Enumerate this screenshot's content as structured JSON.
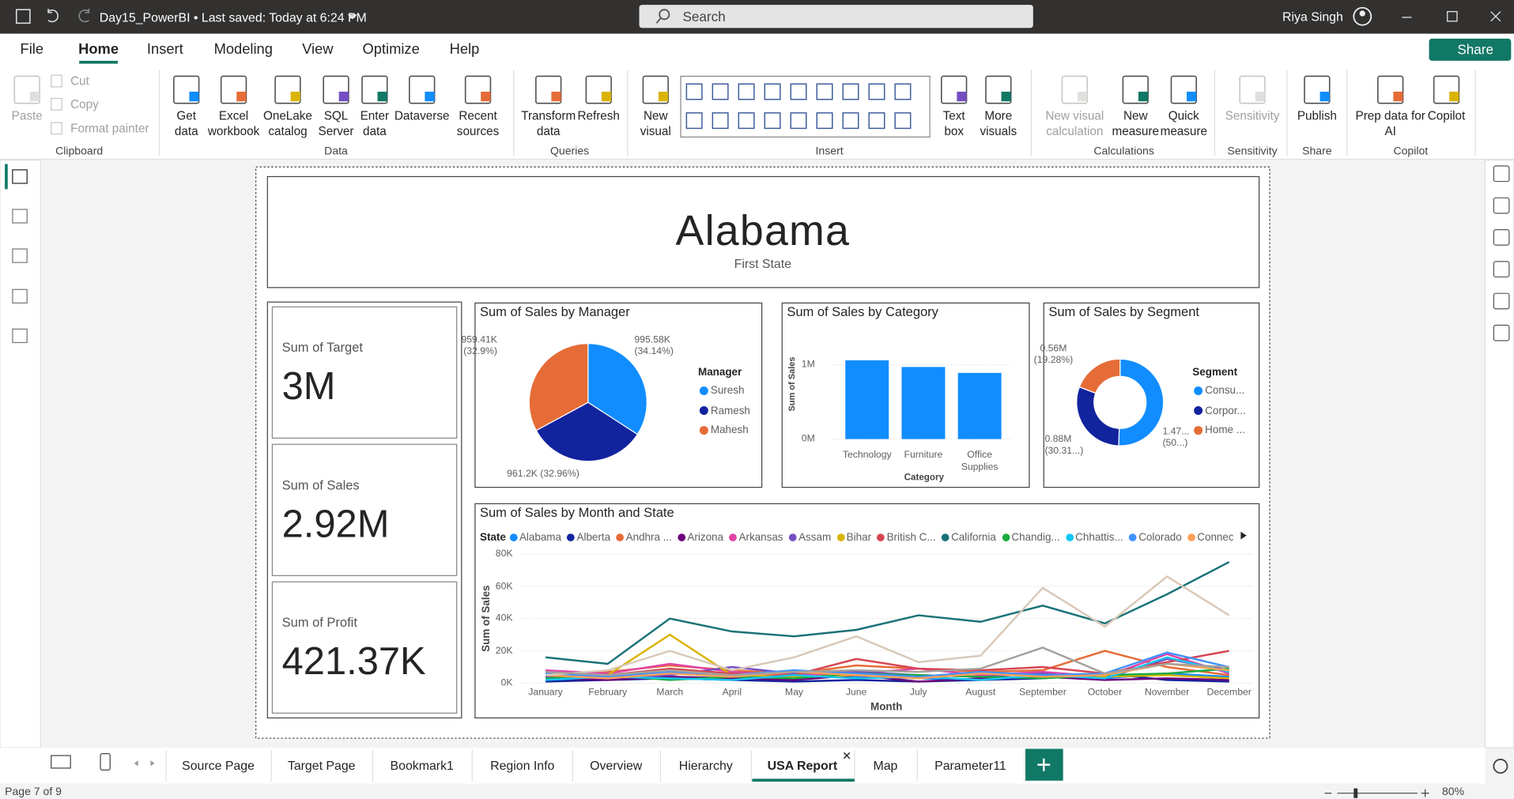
{
  "titlebar": {
    "file": "Day15_PowerBI • Last saved: Today at 6:24 PM",
    "search": "Search",
    "user": "Riya Singh"
  },
  "menu": {
    "items": [
      "File",
      "Home",
      "Insert",
      "Modeling",
      "View",
      "Optimize",
      "Help"
    ],
    "active_index": 1,
    "share": "Share"
  },
  "ribbon": {
    "groups": [
      {
        "label": "Clipboard",
        "buttons": [
          {
            "label": "Paste",
            "disabled": true
          },
          {
            "label": "Cut",
            "disabled": true
          },
          {
            "label": "Copy",
            "disabled": true
          },
          {
            "label": "Format painter",
            "disabled": true
          }
        ]
      },
      {
        "label": "Data",
        "buttons": [
          {
            "label": "Get data",
            "disabled": false
          },
          {
            "label": "Excel workbook",
            "disabled": false
          },
          {
            "label": "OneLake catalog",
            "disabled": false
          },
          {
            "label": "SQL Server",
            "disabled": false
          },
          {
            "label": "Enter data",
            "disabled": false
          },
          {
            "label": "Dataverse",
            "disabled": false
          },
          {
            "label": "Recent sources",
            "disabled": false
          }
        ]
      },
      {
        "label": "Queries",
        "buttons": [
          {
            "label": "Transform data",
            "disabled": false
          },
          {
            "label": "Refresh",
            "disabled": false
          }
        ]
      },
      {
        "label": "Insert",
        "buttons": [
          {
            "label": "New visual",
            "disabled": false
          },
          {
            "label": "Text box",
            "disabled": false
          },
          {
            "label": "More visuals",
            "disabled": false
          }
        ]
      },
      {
        "label": "Calculations",
        "buttons": [
          {
            "label": "New visual calculation",
            "disabled": true
          },
          {
            "label": "New measure",
            "disabled": false
          },
          {
            "label": "Quick measure",
            "disabled": false
          }
        ]
      },
      {
        "label": "Sensitivity",
        "buttons": [
          {
            "label": "Sensitivity",
            "disabled": true
          }
        ]
      },
      {
        "label": "Share",
        "buttons": [
          {
            "label": "Publish",
            "disabled": false
          }
        ]
      },
      {
        "label": "Copilot",
        "buttons": [
          {
            "label": "Prep data for AI",
            "disabled": false
          },
          {
            "label": "Copilot",
            "disabled": false
          }
        ]
      }
    ]
  },
  "report": {
    "header": {
      "title": "Alabama",
      "subtitle": "First State"
    },
    "cards": [
      {
        "label": "Sum of Target",
        "value": "3M"
      },
      {
        "label": "Sum of Sales",
        "value": "2.92M"
      },
      {
        "label": "Sum of Profit",
        "value": "421.37K"
      }
    ]
  },
  "chart_data": [
    {
      "type": "pie",
      "title": "Sum of Sales by Manager",
      "legend_title": "Manager",
      "categories": [
        "Suresh",
        "Ramesh",
        "Mahesh"
      ],
      "values": [
        995580,
        961200,
        959410
      ],
      "value_labels": [
        "995.58K (34.14%)",
        "961.2K (32.96%)",
        "959.41K (32.9%)"
      ],
      "colors": [
        "#118DFF",
        "#12239E",
        "#E66C37"
      ]
    },
    {
      "type": "bar",
      "title": "Sum of Sales by Category",
      "x_label": "Category",
      "y_label": "Sum of Sales",
      "categories": [
        "Technology",
        "Furniture",
        "Office Supplies"
      ],
      "values": [
        1060000,
        970000,
        890000
      ],
      "color": "#118DFF",
      "ylim": [
        0,
        1200000
      ],
      "yticks": [
        {
          "value": 0,
          "label": "0M"
        },
        {
          "value": 1000000,
          "label": "1M"
        }
      ],
      "grid": true
    },
    {
      "type": "donut",
      "title": "Sum of Sales by Segment",
      "legend_title": "Segment",
      "categories": [
        "Consu...",
        "Corpor...",
        "Home ..."
      ],
      "values": [
        1470000,
        880000,
        560000
      ],
      "value_labels": [
        "1.47... (50...)",
        "0.88M (30.31...)",
        "0.56M (19.28%)"
      ],
      "colors": [
        "#118DFF",
        "#12239E",
        "#E66C37"
      ]
    },
    {
      "type": "line",
      "title": "Sum of Sales by Month and State",
      "legend_title": "State",
      "x_label": "Month",
      "y_label": "Sum of Sales",
      "categories": [
        "January",
        "February",
        "March",
        "April",
        "May",
        "June",
        "July",
        "August",
        "September",
        "October",
        "November",
        "December"
      ],
      "ylim": [
        0,
        80000
      ],
      "yticks": [
        {
          "value": 0,
          "label": "0K"
        },
        {
          "value": 20000,
          "label": "20K"
        },
        {
          "value": 40000,
          "label": "40K"
        },
        {
          "value": 60000,
          "label": "60K"
        },
        {
          "value": 80000,
          "label": "80K"
        }
      ],
      "grid": true,
      "series": [
        {
          "name": "Alabama",
          "color": "#118DFF",
          "values": [
            2000,
            3000,
            4000,
            3000,
            5000,
            4000,
            3000,
            2000,
            4000,
            3000,
            6000,
            4000
          ]
        },
        {
          "name": "Alberta",
          "color": "#12239E",
          "values": [
            1000,
            2000,
            3000,
            2000,
            1000,
            2000,
            1000,
            2000,
            3000,
            6000,
            2000,
            1000
          ]
        },
        {
          "name": "Andhra ...",
          "color": "#E66C37",
          "values": [
            5000,
            7000,
            11000,
            8000,
            6000,
            11000,
            9000,
            7000,
            8000,
            20000,
            10000,
            5000
          ]
        },
        {
          "name": "Arizona",
          "color": "#6B007B",
          "values": [
            3000,
            2000,
            4000,
            3000,
            2000,
            5000,
            1000,
            3000,
            4000,
            2000,
            3000,
            2000
          ]
        },
        {
          "name": "Arkansas",
          "color": "#E044A7",
          "values": [
            8000,
            6000,
            12000,
            7000,
            5000,
            6000,
            9000,
            5000,
            7000,
            4000,
            18000,
            6000
          ]
        },
        {
          "name": "Assam",
          "color": "#744EC2",
          "values": [
            4000,
            3000,
            5000,
            10000,
            6000,
            7000,
            5000,
            4000,
            6000,
            3000,
            15000,
            8000
          ]
        },
        {
          "name": "Bihar",
          "color": "#D9B300",
          "values": [
            3000,
            5000,
            30000,
            5000,
            4000,
            5000,
            3000,
            6000,
            5000,
            4000,
            5000,
            3000
          ]
        },
        {
          "name": "British C...",
          "color": "#D64550",
          "values": [
            6000,
            5000,
            9000,
            6000,
            5000,
            15000,
            9000,
            8000,
            10000,
            6000,
            13000,
            20000
          ]
        },
        {
          "name": "California",
          "color": "#197278",
          "values": [
            16000,
            12000,
            40000,
            32000,
            29000,
            33000,
            42000,
            38000,
            48000,
            37000,
            55000,
            75000
          ]
        },
        {
          "name": "Chandig...",
          "color": "#1AAB40",
          "values": [
            3000,
            5000,
            2000,
            4000,
            3000,
            6000,
            5000,
            4000,
            3000,
            5000,
            6000,
            9000
          ]
        },
        {
          "name": "Chhattis...",
          "color": "#15C6F4",
          "values": [
            2000,
            4000,
            3000,
            2000,
            5000,
            3000,
            4000,
            2000,
            5000,
            3000,
            16000,
            7000
          ]
        },
        {
          "name": "Colorado",
          "color": "#4092FF",
          "values": [
            6000,
            4000,
            7000,
            5000,
            8000,
            6000,
            4000,
            7000,
            5000,
            6000,
            19000,
            10000
          ]
        },
        {
          "name": "Connecti...",
          "color": "#FFA058",
          "values": [
            5000,
            3000,
            6000,
            4000,
            7000,
            5000,
            3000,
            6000,
            4000,
            5000,
            12000,
            8000
          ]
        },
        {
          "color": "#D9C8B8",
          "values": [
            5000,
            8000,
            20000,
            8000,
            16000,
            29000,
            13000,
            17000,
            59000,
            35000,
            66000,
            42000
          ]
        },
        {
          "color": "#A5A09B",
          "values": [
            7000,
            5000,
            8000,
            5000,
            7000,
            8000,
            7000,
            9000,
            22000,
            6000,
            12000,
            10000
          ]
        }
      ]
    }
  ],
  "tabs": {
    "items": [
      "Source Page",
      "Target Page",
      "Bookmark1",
      "Region Info",
      "Overview",
      "Hierarchy",
      "USA Report",
      "Map",
      "Parameter11"
    ],
    "active_index": 6
  },
  "status": {
    "page": "Page 7 of 9",
    "zoom": "80%"
  }
}
